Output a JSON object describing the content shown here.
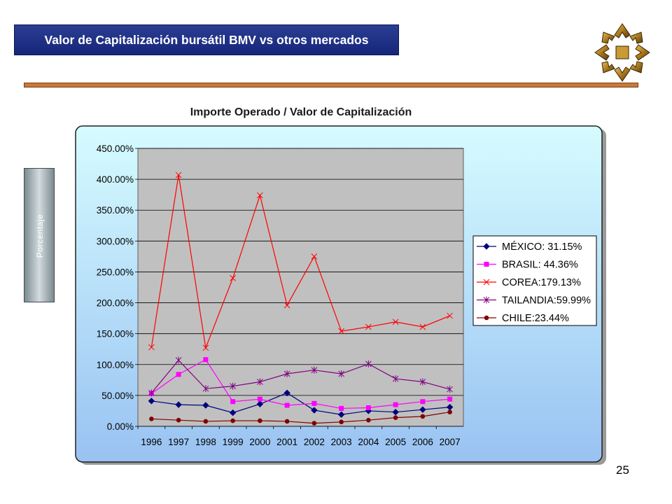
{
  "header": {
    "title": "Valor de Capitalización bursátil BMV vs otros mercados",
    "page_number": "25"
  },
  "colors": {
    "title_bar": "#1e2f86",
    "rule": "#c97a3a",
    "panel_top": "#d6fcff",
    "panel_bottom": "#99c2f2",
    "plot_bg": "#c0c0c0"
  },
  "logo": {
    "icon": "gold-star-logo-icon"
  },
  "chart_data": {
    "type": "line",
    "title": "Importe Operado / Valor de Capitalización",
    "ylabel": "Porcentaje",
    "xlabel": "",
    "categories": [
      "1996",
      "1997",
      "1998",
      "1999",
      "2000",
      "2001",
      "2002",
      "2003",
      "2004",
      "2005",
      "2006",
      "2007"
    ],
    "ylim": [
      0,
      450
    ],
    "yticks": [
      "0.00%",
      "50.00%",
      "100.00%",
      "150.00%",
      "200.00%",
      "250.00%",
      "300.00%",
      "350.00%",
      "400.00%",
      "450.00%"
    ],
    "grid": "horizontal",
    "legend_position": "right",
    "series": [
      {
        "name": "MÉXICO: 31.15%",
        "color": "#000080",
        "marker": "diamond",
        "values": [
          41,
          35,
          34,
          22,
          36,
          54,
          26,
          19,
          25,
          23,
          27,
          31
        ]
      },
      {
        "name": "BRASIL: 44.36%",
        "color": "#ff00ff",
        "marker": "square",
        "values": [
          53,
          84,
          108,
          40,
          44,
          34,
          37,
          29,
          30,
          35,
          40,
          44
        ]
      },
      {
        "name": "COREA:179.13%",
        "color": "#ff0000",
        "marker": "x",
        "values": [
          128,
          407,
          127,
          240,
          374,
          196,
          275,
          154,
          161,
          169,
          161,
          179
        ]
      },
      {
        "name": "TAILANDIA:59.99%",
        "color": "#800080",
        "marker": "star",
        "values": [
          54,
          107,
          61,
          65,
          72,
          85,
          91,
          85,
          101,
          77,
          72,
          60
        ]
      },
      {
        "name": "CHILE:23.44%",
        "color": "#800000",
        "marker": "circle",
        "values": [
          12,
          10,
          8,
          9,
          9,
          8,
          5,
          7,
          10,
          14,
          16,
          23
        ]
      }
    ]
  }
}
